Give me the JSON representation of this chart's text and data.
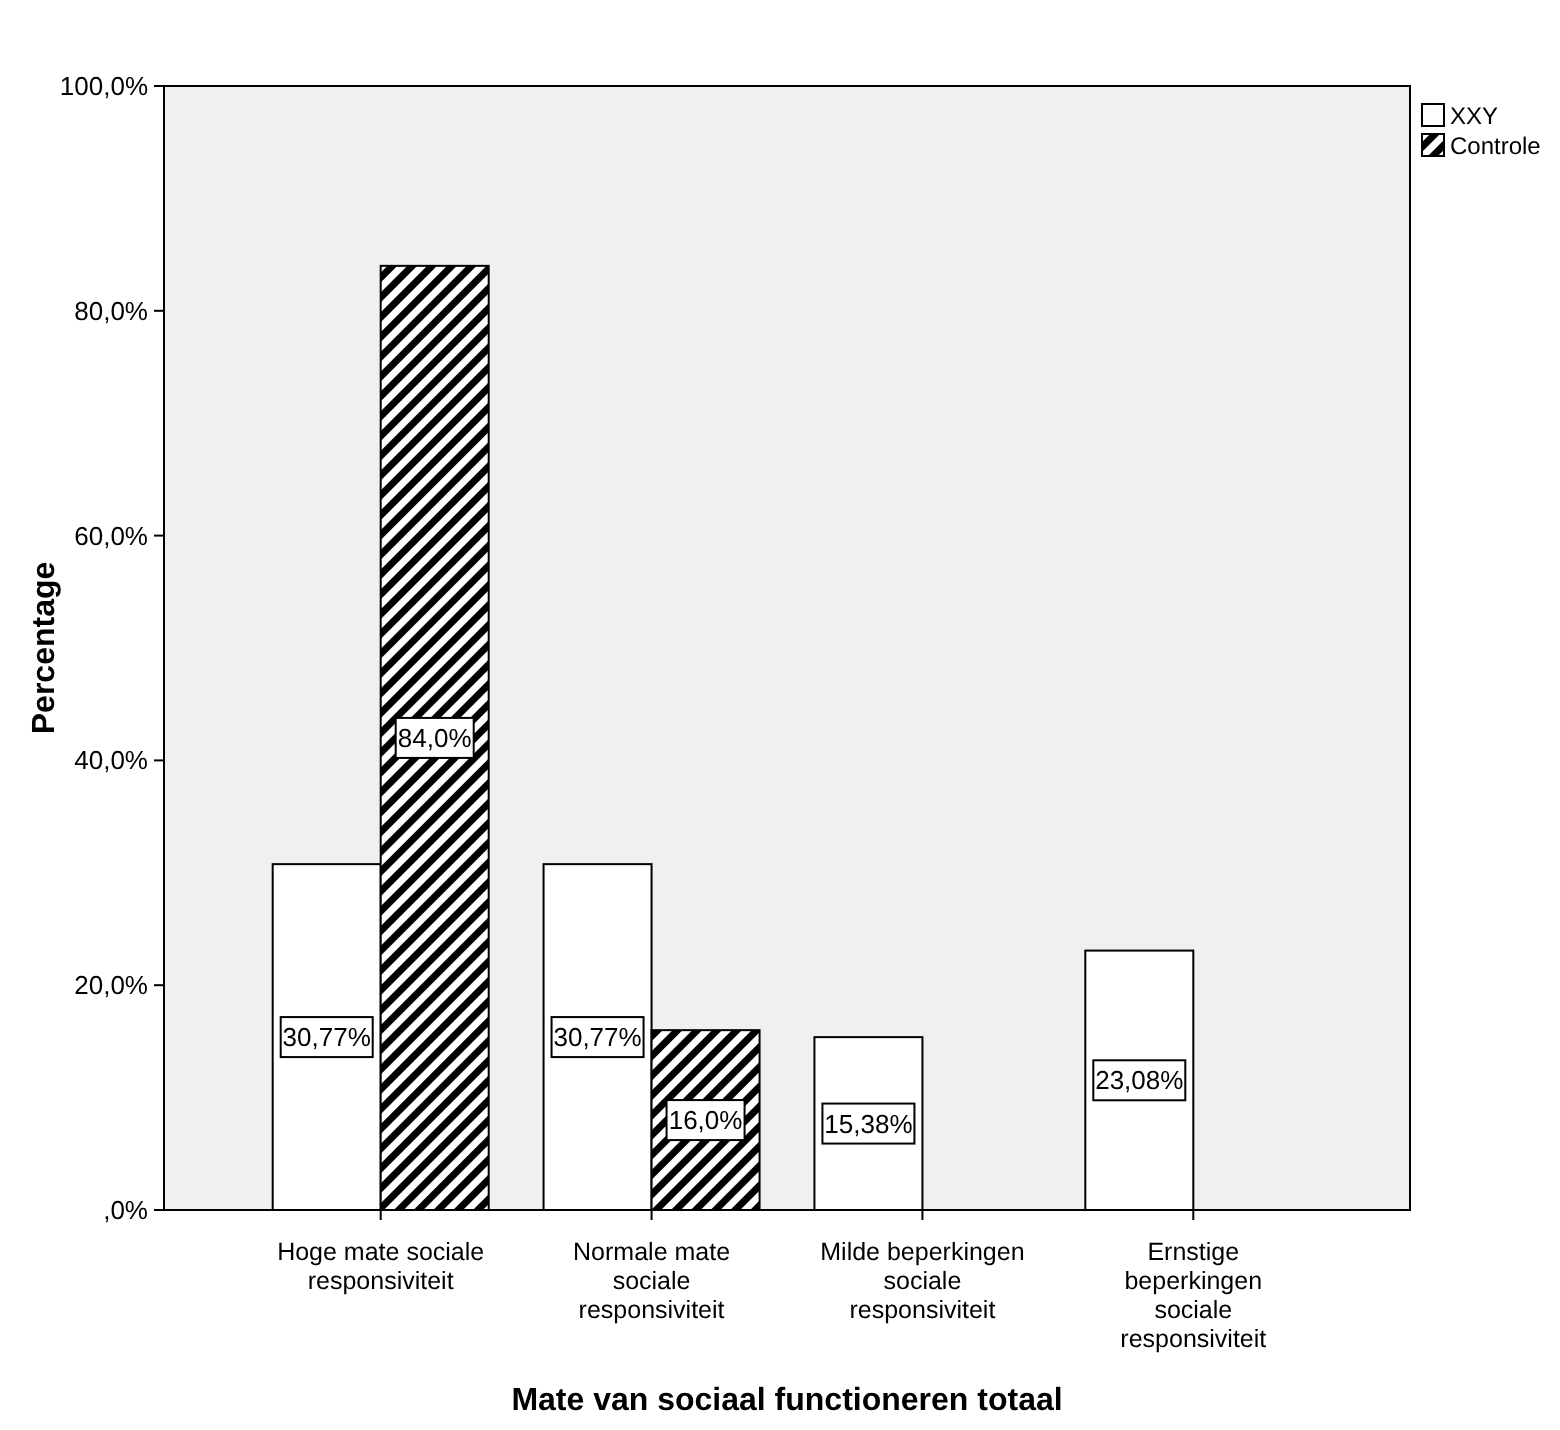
{
  "chart_data": {
    "type": "bar",
    "xlabel": "Mate van sociaal functioneren totaal",
    "ylabel": "Percentage",
    "categories": [
      "Hoge mate sociale responsiviteit",
      "Normale mate sociale responsiviteit",
      "Milde beperkingen sociale responsiviteit",
      "Ernstige beperkingen sociale responsiviteit"
    ],
    "series": [
      {
        "name": "XXY",
        "color": "#ffffff",
        "values": [
          30.77,
          30.77,
          15.38,
          23.08
        ],
        "value_labels": [
          "30,77%",
          "30,77%",
          "15,38%",
          "23,08%"
        ]
      },
      {
        "name": "Controle",
        "color": "#000000",
        "values": [
          84.0,
          16.0,
          0,
          0
        ],
        "value_labels": [
          "84,0%",
          "16,0%",
          null,
          null
        ]
      }
    ],
    "ylim": [
      0,
      100
    ],
    "yticks": [
      {
        "value": 0,
        "label": ",0%"
      },
      {
        "value": 20,
        "label": "20,0%"
      },
      {
        "value": 40,
        "label": "40,0%"
      },
      {
        "value": 60,
        "label": "60,0%"
      },
      {
        "value": 80,
        "label": "80,0%"
      },
      {
        "value": 100,
        "label": "100,0%"
      }
    ],
    "grid": false,
    "legend": "top right"
  }
}
